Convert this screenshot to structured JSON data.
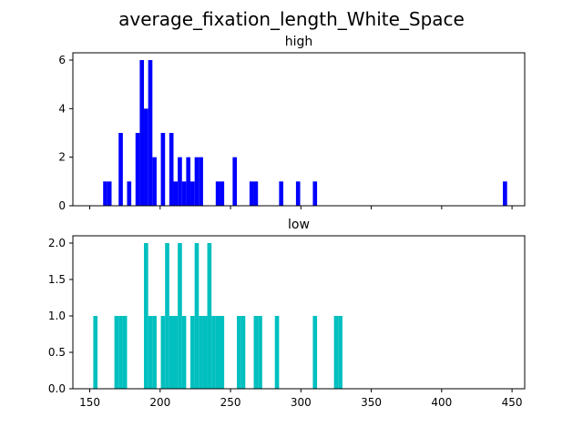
{
  "figure_title": "average_fixation_length_White_Space",
  "colors": {
    "high": "#0000ff",
    "low": "#00bfbf"
  },
  "chart_data": [
    {
      "type": "bar",
      "title": "high",
      "xlabel": "",
      "ylabel": "",
      "xlim": [
        138,
        459
      ],
      "ylim": [
        0,
        6.3
      ],
      "xticks": [
        150,
        200,
        250,
        300,
        350,
        400,
        450
      ],
      "xtick_labels_shown": false,
      "yticks": [
        0,
        2,
        4,
        6
      ],
      "ytick_labels": [
        "0",
        "2",
        "4",
        "6"
      ],
      "bin_width": 3,
      "bars": [
        {
          "x": 161,
          "y": 1
        },
        {
          "x": 164,
          "y": 1
        },
        {
          "x": 172,
          "y": 3
        },
        {
          "x": 178,
          "y": 1
        },
        {
          "x": 184,
          "y": 3
        },
        {
          "x": 187,
          "y": 6
        },
        {
          "x": 190,
          "y": 4
        },
        {
          "x": 193,
          "y": 6
        },
        {
          "x": 196,
          "y": 2
        },
        {
          "x": 202,
          "y": 3
        },
        {
          "x": 208,
          "y": 3
        },
        {
          "x": 211,
          "y": 1
        },
        {
          "x": 214,
          "y": 2
        },
        {
          "x": 217,
          "y": 1
        },
        {
          "x": 220,
          "y": 2
        },
        {
          "x": 223,
          "y": 1
        },
        {
          "x": 226,
          "y": 2
        },
        {
          "x": 229,
          "y": 2
        },
        {
          "x": 241,
          "y": 1
        },
        {
          "x": 244,
          "y": 1
        },
        {
          "x": 253,
          "y": 2
        },
        {
          "x": 265,
          "y": 1
        },
        {
          "x": 268,
          "y": 1
        },
        {
          "x": 286,
          "y": 1
        },
        {
          "x": 298,
          "y": 1
        },
        {
          "x": 310,
          "y": 1
        },
        {
          "x": 445,
          "y": 1
        }
      ]
    },
    {
      "type": "bar",
      "title": "low",
      "xlabel": "",
      "ylabel": "",
      "xlim": [
        138,
        459
      ],
      "ylim": [
        0,
        2.1
      ],
      "xticks": [
        150,
        200,
        250,
        300,
        350,
        400,
        450
      ],
      "xtick_labels": [
        "150",
        "200",
        "250",
        "300",
        "350",
        "400",
        "450"
      ],
      "yticks": [
        0,
        0.5,
        1,
        1.5,
        2
      ],
      "ytick_labels": [
        "0.0",
        "0.5",
        "1.0",
        "1.5",
        "2.0"
      ],
      "bin_width": 3,
      "bars": [
        {
          "x": 154,
          "y": 1
        },
        {
          "x": 169,
          "y": 1
        },
        {
          "x": 172,
          "y": 1
        },
        {
          "x": 175,
          "y": 1
        },
        {
          "x": 190,
          "y": 2
        },
        {
          "x": 193,
          "y": 1
        },
        {
          "x": 196,
          "y": 1
        },
        {
          "x": 202,
          "y": 1
        },
        {
          "x": 205,
          "y": 2
        },
        {
          "x": 208,
          "y": 1
        },
        {
          "x": 211,
          "y": 1
        },
        {
          "x": 214,
          "y": 2
        },
        {
          "x": 217,
          "y": 1
        },
        {
          "x": 223,
          "y": 1
        },
        {
          "x": 226,
          "y": 2
        },
        {
          "x": 229,
          "y": 1
        },
        {
          "x": 232,
          "y": 1
        },
        {
          "x": 235,
          "y": 2
        },
        {
          "x": 238,
          "y": 1
        },
        {
          "x": 241,
          "y": 1
        },
        {
          "x": 244,
          "y": 1
        },
        {
          "x": 256,
          "y": 1
        },
        {
          "x": 259,
          "y": 1
        },
        {
          "x": 268,
          "y": 1
        },
        {
          "x": 271,
          "y": 1
        },
        {
          "x": 283,
          "y": 1
        },
        {
          "x": 310,
          "y": 1
        },
        {
          "x": 325,
          "y": 1
        },
        {
          "x": 328,
          "y": 1
        }
      ]
    }
  ]
}
